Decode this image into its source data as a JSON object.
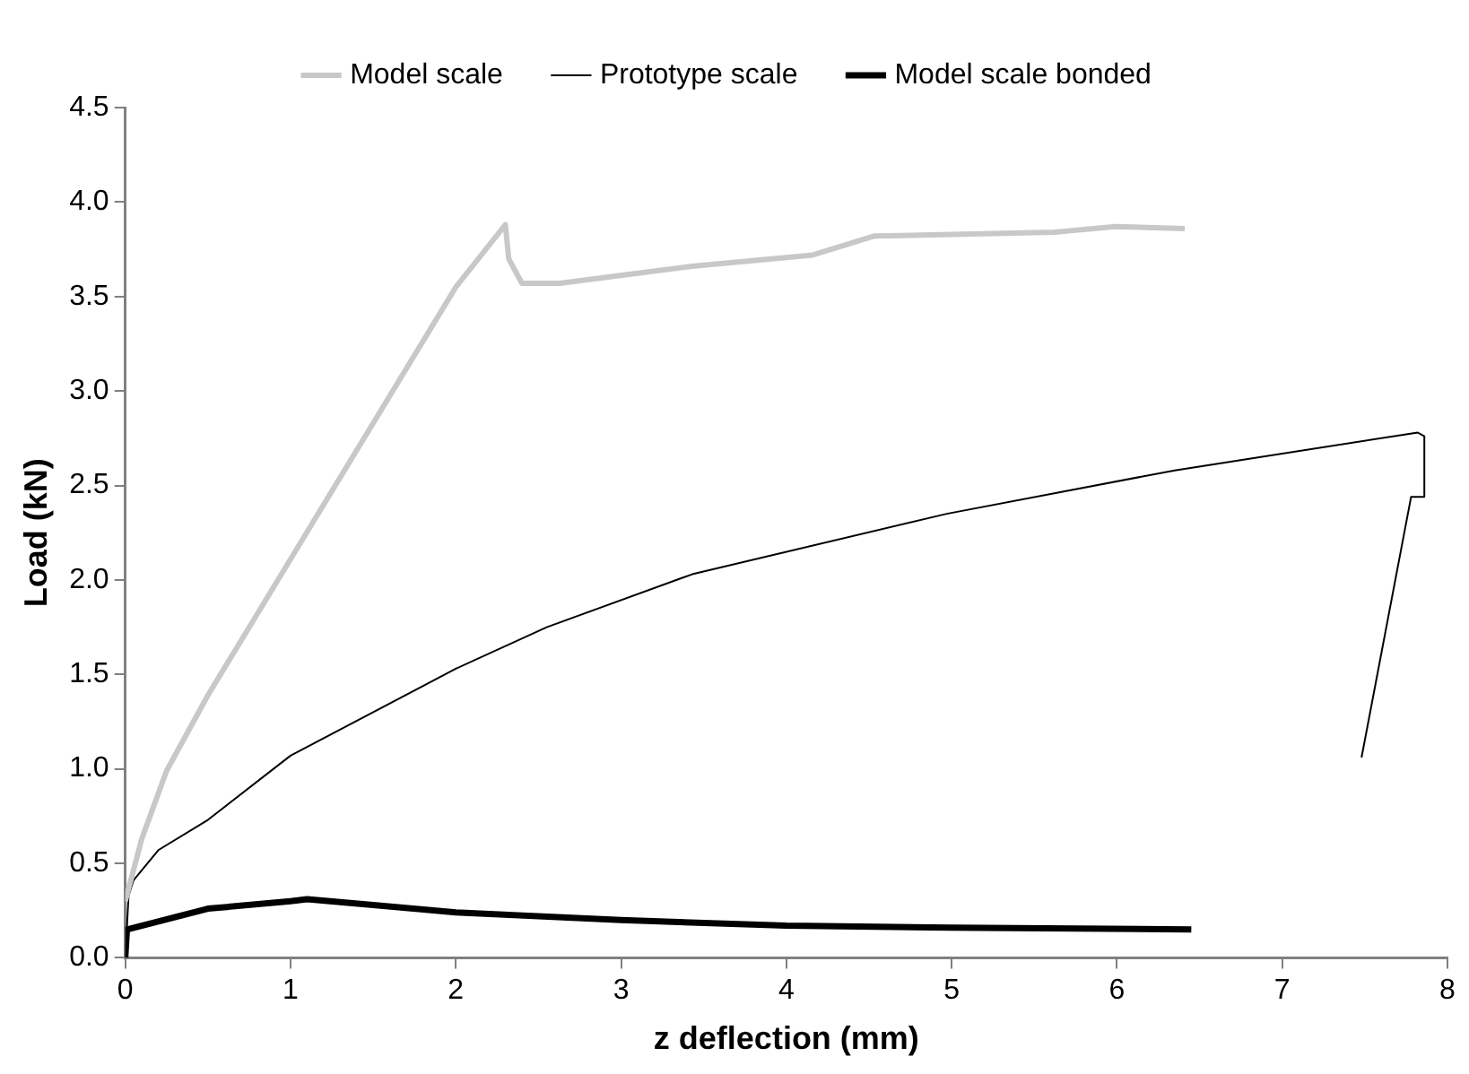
{
  "chart_data": {
    "type": "line",
    "xlabel": "z deflection (mm)",
    "ylabel": "Load (kN)",
    "xlim": [
      0,
      8
    ],
    "xticks": [
      0,
      1,
      2,
      3,
      4,
      5,
      6,
      7,
      8
    ],
    "ylim": [
      0,
      4.5
    ],
    "yticks": [
      {
        "value": 0,
        "label": "0.0"
      },
      {
        "value": 0.5,
        "label": "0.5"
      },
      {
        "value": 1,
        "label": "1.0"
      },
      {
        "value": 1.5,
        "label": "1.5"
      },
      {
        "value": 2,
        "label": "2.0"
      },
      {
        "value": 2.5,
        "label": "2.5"
      },
      {
        "value": 3,
        "label": "3.0"
      },
      {
        "value": 3.5,
        "label": "3.5"
      },
      {
        "value": 4,
        "label": "4.0"
      },
      {
        "value": 4.5,
        "label": "4.5"
      }
    ],
    "grid": false,
    "legend": "top",
    "marker": "none",
    "line_style": "solid",
    "series": [
      {
        "name": "Model scale",
        "color": "#c8c8c8",
        "x": [
          0,
          0.1,
          0.25,
          0.5,
          1,
          1.5,
          2,
          2.3,
          2.32,
          2.4,
          2.63,
          3.07,
          3.43,
          4.16,
          4.53,
          5.62,
          5.99,
          6.41
        ],
        "values": [
          0.3,
          0.63,
          0.99,
          1.39,
          2.11,
          2.83,
          3.55,
          3.88,
          3.7,
          3.57,
          3.57,
          3.62,
          3.66,
          3.72,
          3.82,
          3.84,
          3.87,
          3.86
        ]
      },
      {
        "name": "Prototype scale",
        "color": "#000000",
        "x": [
          0,
          0.02,
          0.05,
          0.2,
          0.5,
          1,
          2,
          2.55,
          3.43,
          4.97,
          6.35,
          7.82,
          7.86,
          7.86,
          7.78,
          7.48
        ],
        "values": [
          0,
          0.33,
          0.41,
          0.57,
          0.73,
          1.07,
          1.53,
          1.75,
          2.03,
          2.35,
          2.58,
          2.78,
          2.76,
          2.44,
          2.44,
          1.06
        ]
      },
      {
        "name": "Model scale bonded",
        "color": "#000000",
        "x": [
          0,
          0.01,
          0.5,
          1,
          1.1,
          1.5,
          2,
          3,
          4,
          5,
          6.45
        ],
        "values": [
          0,
          0.15,
          0.26,
          0.3,
          0.31,
          0.28,
          0.24,
          0.2,
          0.17,
          0.16,
          0.15
        ]
      }
    ]
  }
}
